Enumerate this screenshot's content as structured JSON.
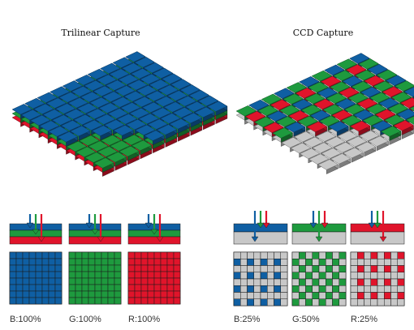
{
  "titles": {
    "trilinear": "Trilinear Capture",
    "ccd": "CCD Capture"
  },
  "labels": {
    "trilinear_blue": "B:100%",
    "trilinear_green": "G:100%",
    "trilinear_red": "R:100%",
    "ccd_blue": "B:25%",
    "ccd_green": "G:50%",
    "ccd_red": "R:25%"
  },
  "colors": {
    "blue": "#0f5fa3",
    "green": "#1e9a3e",
    "red": "#e0142b",
    "gray": "#c8c8c8",
    "outline": "#1a1a1a"
  }
}
